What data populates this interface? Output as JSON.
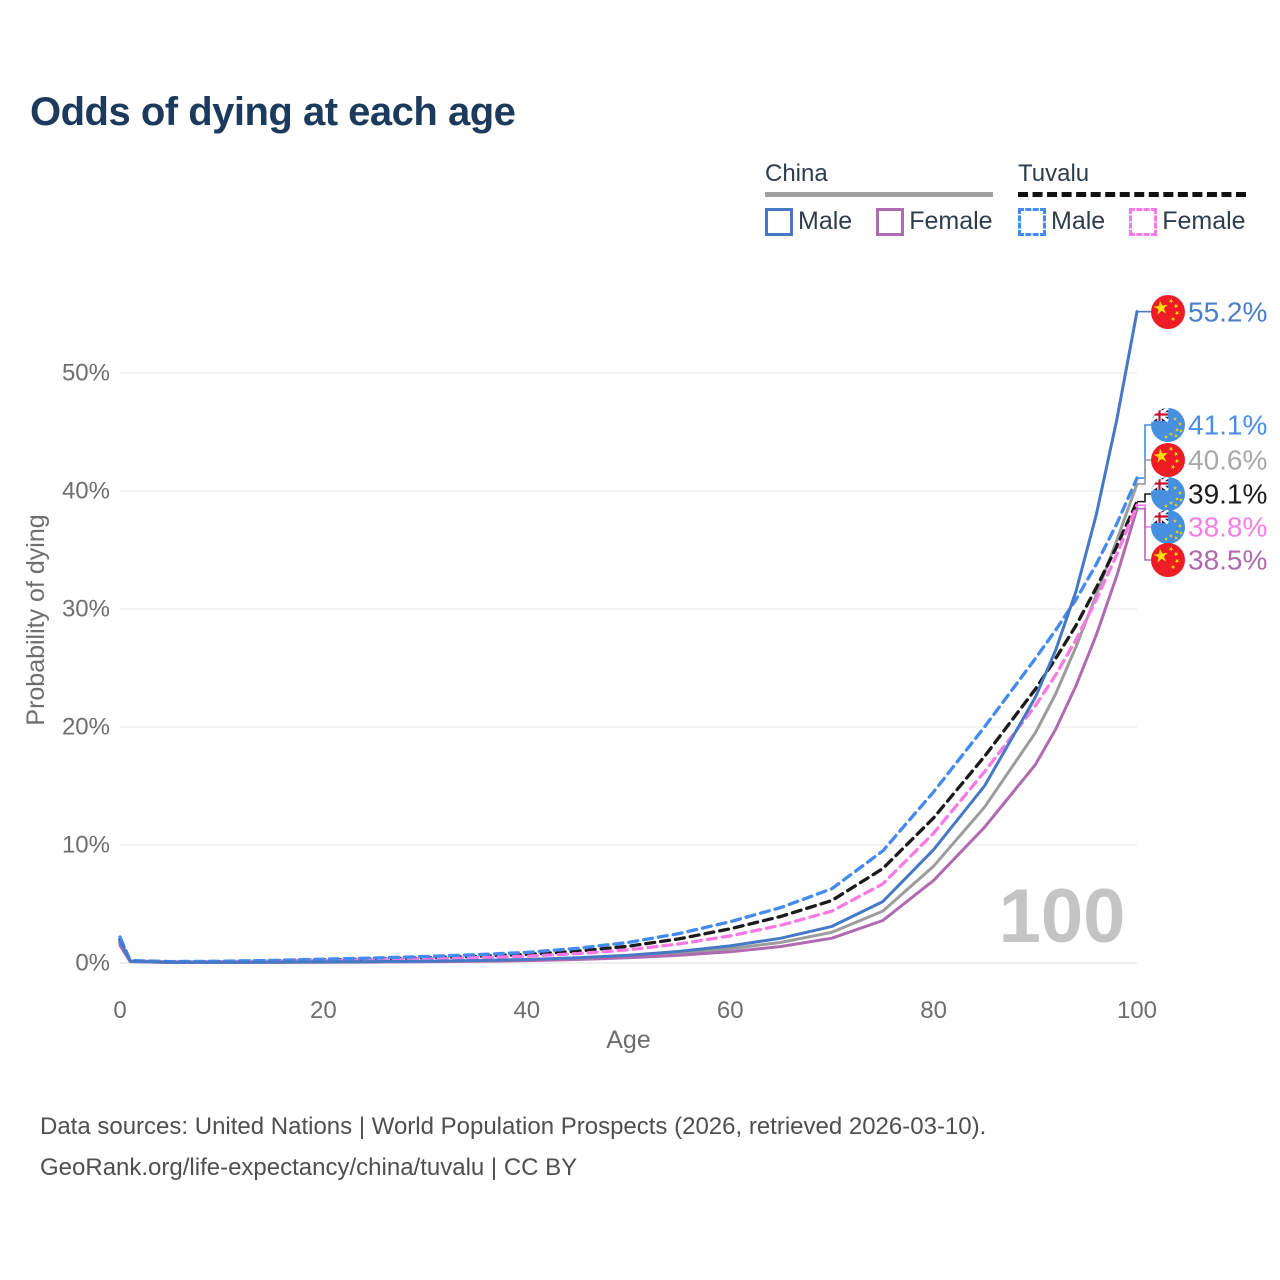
{
  "title": "Odds of dying at each age",
  "legend": {
    "groups": [
      {
        "name": "China",
        "underline_color": "#a0a0a0",
        "underline_style": "solid",
        "items": [
          {
            "label": "Male",
            "color": "#4579c6",
            "dashed": false
          },
          {
            "label": "Female",
            "color": "#b06ab0",
            "dashed": false
          }
        ]
      },
      {
        "name": "Tuvalu",
        "underline_color": "#111111",
        "underline_style": "dashed",
        "items": [
          {
            "label": "Male",
            "color": "#448bef",
            "dashed": true
          },
          {
            "label": "Female",
            "color": "#f97ae4",
            "dashed": true
          }
        ]
      }
    ]
  },
  "chart_data": {
    "type": "line",
    "title": "Odds of dying at each age",
    "xlabel": "Age",
    "ylabel": "Probability of dying",
    "xlim": [
      0,
      100
    ],
    "ylim": [
      0,
      57
    ],
    "x_ticks": [
      0,
      20,
      40,
      60,
      80,
      100
    ],
    "y_ticks": [
      0,
      10,
      20,
      30,
      40,
      50
    ],
    "y_tick_labels": [
      "0%",
      "10%",
      "20%",
      "30%",
      "40%",
      "50%"
    ],
    "grid": "horizontal",
    "legend_position": "top-right",
    "watermark": "100",
    "x": [
      0,
      1,
      5,
      10,
      15,
      20,
      25,
      30,
      35,
      40,
      45,
      50,
      55,
      60,
      65,
      70,
      75,
      80,
      85,
      90,
      92,
      94,
      96,
      98,
      100
    ],
    "series": [
      {
        "name": "China",
        "country": "China",
        "sex": "both",
        "flag": "china",
        "color": "#9c9c9c",
        "dashed": false,
        "label_color": "#a8a8a8",
        "end_label": "40.6%",
        "end_value": 40.6,
        "values": [
          1.65,
          0.13,
          0.045,
          0.045,
          0.065,
          0.08,
          0.1,
          0.12,
          0.17,
          0.25,
          0.37,
          0.55,
          0.82,
          1.2,
          1.75,
          2.6,
          4.4,
          8.2,
          13.2,
          19.5,
          22.8,
          26.8,
          31.2,
          35.8,
          40.6
        ]
      },
      {
        "name": "China Female",
        "country": "China",
        "sex": "female",
        "flag": "china",
        "color": "#b06ab0",
        "dashed": false,
        "label_color": "#b069ae",
        "end_label": "38.5%",
        "end_value": 38.5,
        "values": [
          1.5,
          0.12,
          0.04,
          0.04,
          0.05,
          0.06,
          0.08,
          0.1,
          0.14,
          0.2,
          0.3,
          0.44,
          0.65,
          0.95,
          1.4,
          2.1,
          3.6,
          7.0,
          11.5,
          16.8,
          19.8,
          23.5,
          27.8,
          32.8,
          38.5
        ]
      },
      {
        "name": "Tuvalu",
        "country": "Tuvalu",
        "sex": "both",
        "flag": "tuvalu",
        "color": "#1b1b1b",
        "dashed": true,
        "label_color": "#1b1b1b",
        "end_label": "39.1%",
        "end_value": 39.1,
        "values": [
          2.0,
          0.18,
          0.1,
          0.12,
          0.18,
          0.26,
          0.34,
          0.44,
          0.57,
          0.73,
          1.0,
          1.42,
          2.05,
          2.9,
          3.95,
          5.3,
          8.0,
          12.3,
          17.5,
          23.2,
          25.8,
          28.6,
          31.8,
          35.3,
          39.1
        ]
      },
      {
        "name": "Tuvalu Female",
        "country": "Tuvalu",
        "sex": "female",
        "flag": "tuvalu",
        "color": "#f97ae4",
        "dashed": true,
        "label_color": "#f87de8",
        "end_label": "38.8%",
        "end_value": 38.8,
        "values": [
          1.8,
          0.16,
          0.09,
          0.1,
          0.14,
          0.2,
          0.27,
          0.35,
          0.45,
          0.58,
          0.8,
          1.12,
          1.62,
          2.3,
          3.2,
          4.4,
          6.7,
          11.0,
          16.2,
          21.8,
          24.4,
          27.4,
          30.8,
          34.6,
          38.8
        ]
      },
      {
        "name": "Tuvalu Male",
        "country": "Tuvalu",
        "sex": "male",
        "flag": "tuvalu",
        "color": "#448bef",
        "dashed": true,
        "label_color": "#4a8df0",
        "end_label": "41.1%",
        "end_value": 41.1,
        "values": [
          2.2,
          0.2,
          0.12,
          0.15,
          0.22,
          0.32,
          0.42,
          0.55,
          0.7,
          0.9,
          1.25,
          1.75,
          2.5,
          3.5,
          4.7,
          6.3,
          9.5,
          14.5,
          20.0,
          25.8,
          28.2,
          30.8,
          33.8,
          37.2,
          41.1
        ]
      },
      {
        "name": "China Male",
        "country": "China",
        "sex": "male",
        "flag": "china",
        "color": "#4579c6",
        "dashed": false,
        "label_color": "#4a7ecb",
        "end_label": "55.2%",
        "end_value": 55.2,
        "values": [
          1.8,
          0.15,
          0.05,
          0.05,
          0.08,
          0.1,
          0.12,
          0.15,
          0.21,
          0.3,
          0.44,
          0.65,
          0.98,
          1.45,
          2.1,
          3.1,
          5.2,
          9.6,
          15.0,
          22.5,
          26.5,
          31.5,
          38.0,
          46.0,
          55.2
        ]
      }
    ]
  },
  "footer": {
    "line1": "Data sources: United Nations | World Population Prospects (2026, retrieved 2026-03-10).",
    "line2": "GeoRank.org/life-expectancy/china/tuvalu | CC BY"
  }
}
